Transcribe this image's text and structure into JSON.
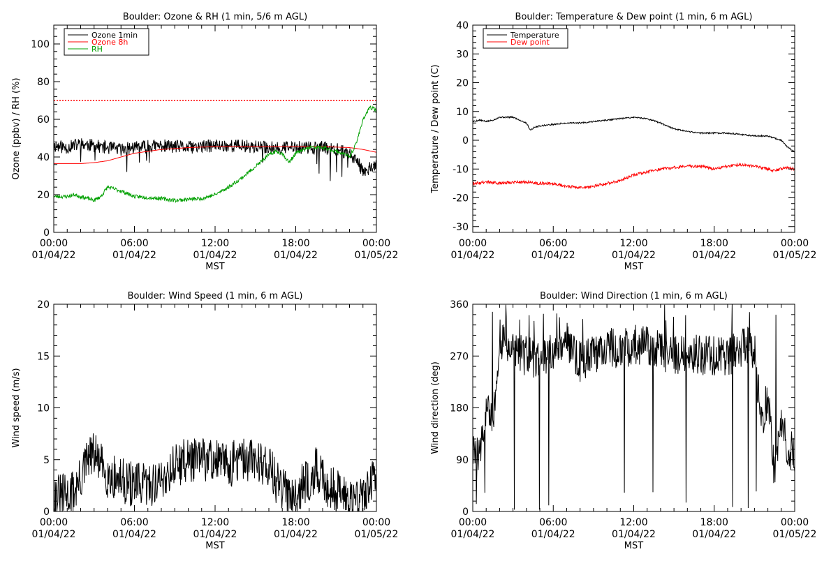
{
  "chart_data": [
    {
      "type": "line",
      "title": "Boulder: Ozone & RH (1 min, 5/6 m AGL)",
      "xlabel": "MST",
      "ylabel": "Ozone (ppbv) / RH (%)",
      "xlim": [
        0,
        24
      ],
      "ylim": [
        0,
        110
      ],
      "yticks": [
        0,
        20,
        40,
        60,
        80,
        100
      ],
      "xtick_time": [
        "00:00",
        "06:00",
        "12:00",
        "18:00",
        "00:00"
      ],
      "xtick_date": [
        "01/04/22",
        "01/04/22",
        "01/04/22",
        "01/04/22",
        "01/05/22"
      ],
      "legend_position": "top-left",
      "hlines": [
        {
          "y": 70,
          "color": "#ff0000",
          "style": "dotted"
        }
      ],
      "series": [
        {
          "name": "Ozone 1min",
          "color": "#000000",
          "noise": 3.5,
          "seed": 11,
          "x": [
            0,
            1,
            2,
            3,
            4,
            5,
            6,
            8,
            10,
            12,
            14,
            16,
            18,
            20,
            21,
            22,
            22.5,
            23,
            23.5,
            24
          ],
          "y": [
            46,
            45,
            47,
            46,
            45,
            44,
            45,
            46,
            45,
            46,
            46,
            45,
            45,
            45,
            44,
            42,
            38,
            33,
            34,
            35
          ]
        },
        {
          "name": "Ozone 8h",
          "color": "#ff0000",
          "noise": 0,
          "seed": 1,
          "x": [
            0,
            2,
            3,
            4,
            5,
            6,
            8,
            10,
            12,
            14,
            16,
            18,
            20,
            22,
            23,
            24
          ],
          "y": [
            36.5,
            36.5,
            37,
            38,
            40,
            42,
            44,
            45,
            45.5,
            45.5,
            45.5,
            45.5,
            45.5,
            45,
            44,
            42.5
          ]
        },
        {
          "name": "RH",
          "color": "#00a000",
          "noise": 1.0,
          "seed": 23,
          "x": [
            0,
            1,
            1.5,
            2,
            2.5,
            3,
            3.5,
            4,
            5,
            6,
            8,
            9,
            10,
            11,
            12,
            13,
            14,
            15,
            16,
            16.5,
            17,
            17.5,
            18,
            19,
            20,
            21,
            21.5,
            22,
            22.5,
            23,
            23.5,
            23.8,
            24
          ],
          "y": [
            19,
            19,
            20,
            19,
            18,
            17,
            19,
            24,
            22,
            19,
            18,
            17,
            17.5,
            18,
            20,
            24,
            29,
            35,
            41,
            43,
            42,
            37,
            42,
            45,
            45,
            43,
            42,
            40,
            47,
            60,
            66,
            66,
            64
          ]
        }
      ]
    },
    {
      "type": "line",
      "title": "Boulder: Temperature & Dew point (1 min, 6 m AGL)",
      "xlabel": "MST",
      "ylabel": "Temperature / Dew point (C)",
      "xlim": [
        0,
        24
      ],
      "ylim": [
        -32,
        40
      ],
      "yticks": [
        -30,
        -20,
        -10,
        0,
        10,
        20,
        30,
        40
      ],
      "xtick_time": [
        "00:00",
        "06:00",
        "12:00",
        "18:00",
        "00:00"
      ],
      "xtick_date": [
        "01/04/22",
        "01/04/22",
        "01/04/22",
        "01/04/22",
        "01/05/22"
      ],
      "legend_position": "top-left",
      "series": [
        {
          "name": "Temperature",
          "color": "#000000",
          "noise": 0.25,
          "seed": 5,
          "x": [
            0,
            0.5,
            1,
            1.5,
            2,
            3,
            4,
            4.3,
            4.6,
            5,
            6,
            7,
            8,
            9,
            10,
            11,
            12,
            13,
            14,
            15,
            16,
            17,
            18,
            19,
            20,
            21,
            22,
            23,
            23.5,
            24
          ],
          "y": [
            6.5,
            7,
            6.5,
            7,
            8,
            8,
            6,
            3.5,
            4.5,
            5,
            5.5,
            6,
            6,
            6.5,
            7,
            7.5,
            8,
            7.5,
            6,
            4,
            3,
            2.5,
            2.5,
            2.5,
            2,
            1.5,
            1.5,
            0,
            -2.5,
            -4
          ]
        },
        {
          "name": "Dew point",
          "color": "#ff0000",
          "noise": 0.5,
          "seed": 9,
          "x": [
            0,
            1,
            2,
            3,
            4,
            5,
            6,
            7,
            8,
            9,
            10,
            11,
            12,
            13,
            14,
            15,
            16,
            17,
            18,
            19,
            20,
            21,
            22,
            22.5,
            23,
            23.5,
            24
          ],
          "y": [
            -15,
            -14.5,
            -15,
            -14.5,
            -14.5,
            -15,
            -15,
            -16,
            -16.5,
            -16,
            -15,
            -14,
            -12,
            -11,
            -10,
            -9.5,
            -9,
            -9,
            -10,
            -9,
            -8.5,
            -9,
            -10,
            -10.5,
            -10,
            -9.5,
            -10
          ]
        }
      ]
    },
    {
      "type": "line",
      "title": "Boulder: Wind Speed (1 min, 6 m AGL)",
      "xlabel": "MST",
      "ylabel": "Wind speed (m/s)",
      "xlim": [
        0,
        24
      ],
      "ylim": [
        0,
        20
      ],
      "yticks": [
        0,
        5,
        10,
        15,
        20
      ],
      "xtick_time": [
        "00:00",
        "06:00",
        "12:00",
        "18:00",
        "00:00"
      ],
      "xtick_date": [
        "01/04/22",
        "01/04/22",
        "01/04/22",
        "01/04/22",
        "01/05/22"
      ],
      "series": [
        {
          "name": "",
          "color": "#000000",
          "noise": 2.2,
          "seed": 31,
          "x": [
            0,
            1,
            1.5,
            2,
            2.5,
            3,
            3.5,
            4,
            5,
            6,
            7,
            8,
            9,
            10,
            11,
            12,
            13,
            14,
            15,
            16,
            16.5,
            17,
            18,
            19,
            19.5,
            20,
            21,
            22,
            22.5,
            23,
            23.5,
            24
          ],
          "y": [
            1.5,
            1.5,
            2,
            3,
            5,
            5.5,
            4.5,
            3.5,
            3,
            2.5,
            2.5,
            3,
            4.5,
            5,
            5,
            5,
            4.5,
            5,
            5,
            4.5,
            3,
            2,
            2,
            3,
            4,
            3,
            2,
            1.5,
            1,
            1.5,
            2.5,
            3
          ]
        }
      ]
    },
    {
      "type": "line",
      "title": "Boulder: Wind Direction (1 min, 6 m AGL)",
      "xlabel": "MST",
      "ylabel": "Wind direction (deg)",
      "xlim": [
        0,
        24
      ],
      "ylim": [
        0,
        360
      ],
      "yticks": [
        0,
        90,
        180,
        270,
        360
      ],
      "xtick_time": [
        "00:00",
        "06:00",
        "12:00",
        "18:00",
        "00:00"
      ],
      "xtick_date": [
        "01/04/22",
        "01/04/22",
        "01/04/22",
        "01/04/22",
        "01/05/22"
      ],
      "series": [
        {
          "name": "",
          "color": "#000000",
          "noise": 35,
          "seed": 47,
          "x": [
            0,
            0.5,
            1,
            1.5,
            2,
            3,
            4,
            5,
            6,
            7,
            8,
            9,
            10,
            11,
            12,
            13,
            14,
            15,
            16,
            17,
            18,
            19,
            20,
            20.5,
            21,
            21.5,
            22,
            22.5,
            23,
            23.5,
            24
          ],
          "y": [
            120,
            90,
            180,
            150,
            300,
            280,
            270,
            260,
            280,
            300,
            260,
            270,
            290,
            280,
            290,
            290,
            280,
            270,
            280,
            270,
            270,
            270,
            280,
            290,
            280,
            150,
            200,
            60,
            150,
            110,
            100
          ]
        }
      ]
    }
  ]
}
